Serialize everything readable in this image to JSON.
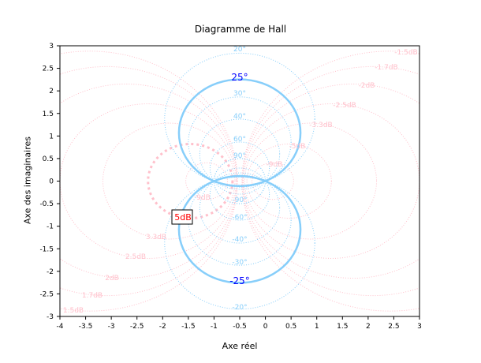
{
  "chart_data": {
    "type": "line",
    "title": "Diagramme de Hall",
    "xlabel": "Axe réel",
    "ylabel": "Axe des imaginaires",
    "xlim": [
      -4,
      3
    ],
    "ylim": [
      -3,
      3
    ],
    "xticks": [
      -4,
      -3.5,
      -3,
      -2.5,
      -2,
      -1.5,
      -1,
      -0.5,
      0,
      0.5,
      1,
      1.5,
      2,
      2.5,
      3
    ],
    "yticks": [
      -3,
      -2.5,
      -2,
      -1.5,
      -1,
      -0.5,
      0,
      0.5,
      1,
      1.5,
      2,
      2.5,
      3
    ],
    "grid": false,
    "gain_circles_db": [
      -1.5,
      -1.7,
      -2,
      -2.5,
      -3.3,
      -5,
      -9,
      9,
      5,
      3.3,
      2.5,
      2,
      1.7,
      1.5
    ],
    "gain_labels": [
      "-1.5dB",
      "-1.7dB",
      "-2dB",
      "-2.5dB",
      "-3.3dB",
      "-5dB",
      "-9dB",
      "9dB",
      "5dB",
      "3.3dB",
      "2.5dB",
      "2dB",
      "1.7dB",
      "1.5dB"
    ],
    "phase_circles_deg": [
      20,
      25,
      30,
      40,
      60,
      90,
      -90,
      -60,
      -40,
      -30,
      -25,
      -20
    ],
    "phase_labels": [
      "20°",
      "25°",
      "30°",
      "40°",
      "60°",
      "90°",
      "-90°",
      "-60°",
      "-40°",
      "-30°",
      "-25°",
      "-20°"
    ],
    "highlight": {
      "phase_deg": [
        25,
        -25
      ],
      "gain_db": 5,
      "gain_label": "5dB"
    },
    "colors": {
      "gain": "#ffc0cb",
      "phase": "#87cefa",
      "phase_highlight_label": "#0000ff",
      "gain_highlight_label": "#ff0000"
    }
  }
}
